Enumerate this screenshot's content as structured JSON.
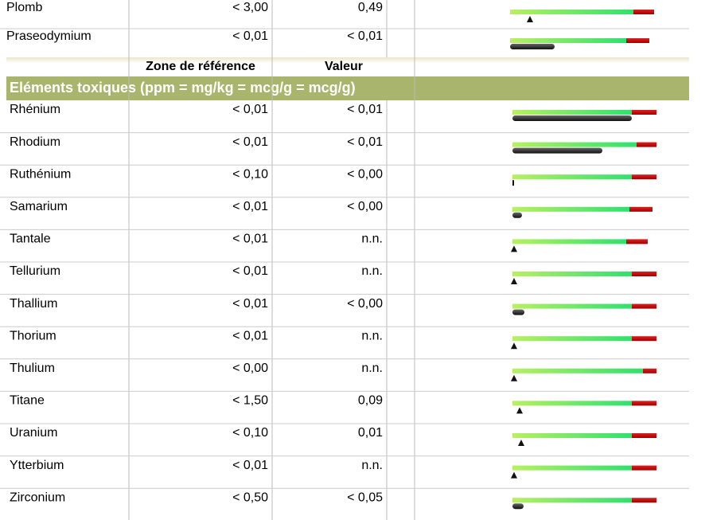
{
  "top_rows": [
    [
      "Plomb",
      "< 3,00",
      "0,49"
    ],
    [
      "Praseodymium",
      "< 0,01",
      "< 0,01"
    ]
  ],
  "header": {
    "reference": "Zone de référence",
    "value": "Valeur"
  },
  "section_title": "Eléments toxiques (ppm = mg/kg = mcg/g = mcg/g)",
  "rows": [
    [
      "Rhénium",
      "< 0,01",
      "< 0,01"
    ],
    [
      "Rhodium",
      "< 0,01",
      "< 0,01"
    ],
    [
      "Ruthénium",
      "< 0,10",
      "< 0,00"
    ],
    [
      "Samarium",
      "< 0,01",
      "< 0,00"
    ],
    [
      "Tantale",
      "< 0,01",
      "n.n."
    ],
    [
      "Tellurium",
      "< 0,01",
      "n.n."
    ],
    [
      "Thallium",
      "< 0,01",
      "< 0,00"
    ],
    [
      "Thorium",
      "< 0,01",
      "n.n."
    ],
    [
      "Thulium",
      "< 0,00",
      "n.n."
    ],
    [
      "Titane",
      "< 1,50",
      "0,09"
    ],
    [
      "Uranium",
      "< 0,10",
      "0,01"
    ],
    [
      "Ytterbium",
      "< 0,01",
      "n.n."
    ],
    [
      "Zirconium",
      "< 0,50",
      "< 0,05"
    ]
  ]
}
